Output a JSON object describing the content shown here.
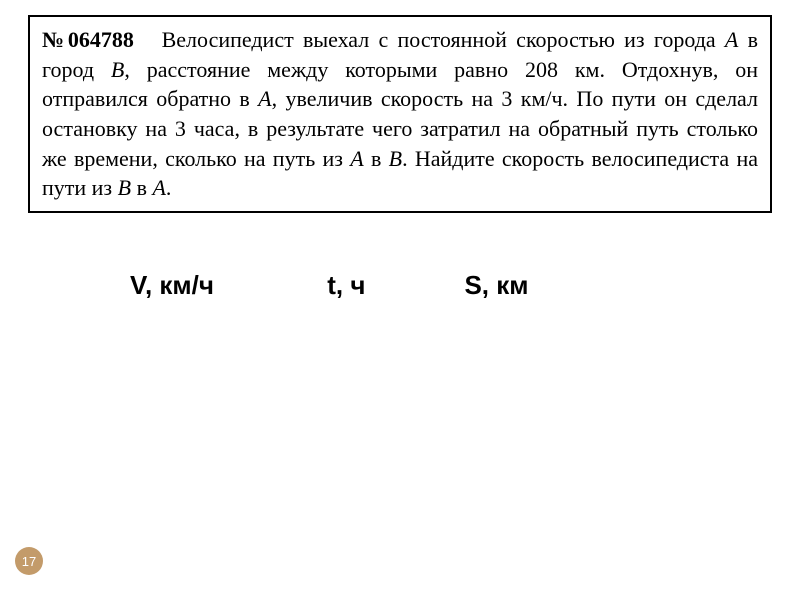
{
  "problem": {
    "number": "№064788",
    "text_parts": {
      "p1": "Велосипедист выехал с постоянной скоростью из города ",
      "a1": "A",
      "p2": " в город ",
      "b1": "B",
      "p3": ", расстояние между которыми равно 208 км. Отдохнув, он отправился обратно в ",
      "a2": "A",
      "p4": ", увеличив скорость на 3 км/ч. По пути он сделал остановку на 3 часа, в результате чего затратил на обратный путь столько же времени, сколько на путь из ",
      "a3": "A",
      "p5": " в ",
      "b2": "B",
      "p6": ". Найдите скорость велосипедиста на пути из ",
      "b3": "B",
      "p7": " в ",
      "a4": "A",
      "p8": "."
    }
  },
  "table": {
    "col1": "V, км/ч",
    "col2": "t, ч",
    "col3": "S, км"
  },
  "page_number": "17",
  "style": {
    "box_border_color": "#000000",
    "page_num_bg": "#c39b6a",
    "page_num_color": "#ffffff",
    "text_color": "#000000",
    "problem_fontsize": 22,
    "header_fontsize": 26
  }
}
